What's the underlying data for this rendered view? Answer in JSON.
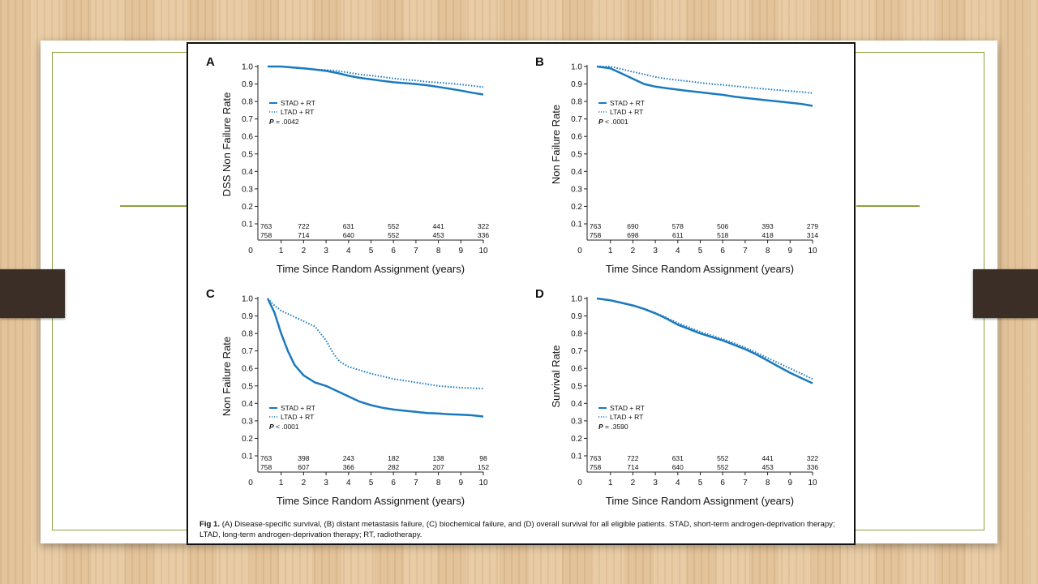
{
  "colors": {
    "series": "#1a7abf",
    "slide_frame": "#8aa33c",
    "tab": "#3b2e26"
  },
  "caption": {
    "label": "Fig 1.",
    "text": "(A) Disease-specific survival, (B) distant metastasis failure, (C) biochemical failure, and (D) overall survival for all eligible patients. STAD, short-term androgen-deprivation therapy; LTAD, long-term androgen-deprivation therapy; RT, radiotherapy."
  },
  "chart_data": [
    {
      "type": "line",
      "panel": "A",
      "xlabel": "Time Since Random Assignment (years)",
      "ylabel": "DSS Non Failure Rate",
      "xlim": [
        0,
        10
      ],
      "ylim": [
        0,
        1
      ],
      "x_ticks": [
        "0",
        "1",
        "2",
        "3",
        "4",
        "5",
        "6",
        "7",
        "8",
        "9",
        "10"
      ],
      "y_ticks": [
        "0.1",
        "0.2",
        "0.3",
        "0.4",
        "0.5",
        "0.6",
        "0.7",
        "0.8",
        "0.9",
        "1.0"
      ],
      "legend": {
        "placement": "upper-left",
        "entries": [
          "STAD + RT",
          "LTAD + RT"
        ],
        "p_label": "P",
        "p_value": "= .0042"
      },
      "series": [
        {
          "name": "STAD + RT",
          "style": "solid",
          "x": [
            0.4,
            1,
            1.5,
            2,
            2.5,
            3,
            3.5,
            4,
            4.5,
            5,
            5.5,
            6,
            6.5,
            7,
            7.5,
            8,
            8.5,
            9,
            9.5,
            10
          ],
          "y": [
            1.0,
            1.0,
            0.995,
            0.99,
            0.983,
            0.975,
            0.963,
            0.947,
            0.935,
            0.927,
            0.918,
            0.91,
            0.905,
            0.9,
            0.893,
            0.883,
            0.873,
            0.862,
            0.85,
            0.84
          ]
        },
        {
          "name": "LTAD + RT",
          "style": "dotted",
          "x": [
            0.4,
            1,
            1.5,
            2,
            2.5,
            3,
            3.5,
            4,
            4.5,
            5,
            5.5,
            6,
            6.5,
            7,
            7.5,
            8,
            8.5,
            9,
            9.5,
            10
          ],
          "y": [
            1.0,
            1.0,
            0.993,
            0.988,
            0.983,
            0.98,
            0.975,
            0.965,
            0.955,
            0.948,
            0.94,
            0.932,
            0.925,
            0.92,
            0.913,
            0.908,
            0.903,
            0.897,
            0.89,
            0.882
          ]
        }
      ],
      "at_risk": {
        "x": [
          0.4,
          2,
          4,
          6,
          8,
          10
        ],
        "rows": [
          [
            "763",
            "722",
            "631",
            "552",
            "441",
            "322"
          ],
          [
            "758",
            "714",
            "640",
            "552",
            "453",
            "336"
          ]
        ]
      }
    },
    {
      "type": "line",
      "panel": "B",
      "xlabel": "Time Since Random Assignment (years)",
      "ylabel": "Non Failure Rate",
      "xlim": [
        0,
        10
      ],
      "ylim": [
        0,
        1
      ],
      "x_ticks": [
        "0",
        "1",
        "2",
        "3",
        "4",
        "5",
        "6",
        "7",
        "8",
        "9",
        "10"
      ],
      "y_ticks": [
        "0.1",
        "0.2",
        "0.3",
        "0.4",
        "0.5",
        "0.6",
        "0.7",
        "0.8",
        "0.9",
        "1.0"
      ],
      "legend": {
        "placement": "upper-left",
        "entries": [
          "STAD + RT",
          "LTAD + RT"
        ],
        "p_label": "P",
        "p_value": "< .0001"
      },
      "series": [
        {
          "name": "STAD + RT",
          "style": "solid",
          "x": [
            0.4,
            1,
            1.5,
            2,
            2.5,
            3,
            3.5,
            4,
            4.5,
            5,
            5.5,
            6,
            6.5,
            7,
            7.5,
            8,
            8.5,
            9,
            9.5,
            10
          ],
          "y": [
            1.0,
            0.99,
            0.96,
            0.93,
            0.9,
            0.885,
            0.876,
            0.868,
            0.86,
            0.853,
            0.845,
            0.838,
            0.828,
            0.82,
            0.813,
            0.806,
            0.8,
            0.793,
            0.786,
            0.775
          ]
        },
        {
          "name": "LTAD + RT",
          "style": "dotted",
          "x": [
            0.4,
            1,
            1.5,
            2,
            2.5,
            3,
            3.5,
            4,
            4.5,
            5,
            5.5,
            6,
            6.5,
            7,
            7.5,
            8,
            8.5,
            9,
            9.5,
            10
          ],
          "y": [
            1.0,
            1.0,
            0.985,
            0.97,
            0.955,
            0.94,
            0.93,
            0.922,
            0.915,
            0.907,
            0.9,
            0.895,
            0.888,
            0.882,
            0.876,
            0.87,
            0.865,
            0.86,
            0.855,
            0.848
          ]
        }
      ],
      "at_risk": {
        "x": [
          0.4,
          2,
          4,
          6,
          8,
          10
        ],
        "rows": [
          [
            "763",
            "690",
            "578",
            "506",
            "393",
            "279"
          ],
          [
            "758",
            "698",
            "611",
            "518",
            "418",
            "314"
          ]
        ]
      }
    },
    {
      "type": "line",
      "panel": "C",
      "xlabel": "Time Since Random Assignment (years)",
      "ylabel": "Non Failure Rate",
      "xlim": [
        0,
        10
      ],
      "ylim": [
        0,
        1
      ],
      "x_ticks": [
        "0",
        "1",
        "2",
        "3",
        "4",
        "5",
        "6",
        "7",
        "8",
        "9",
        "10"
      ],
      "y_ticks": [
        "0.1",
        "0.2",
        "0.3",
        "0.4",
        "0.5",
        "0.6",
        "0.7",
        "0.8",
        "0.9",
        "1.0"
      ],
      "legend": {
        "placement": "lower-left",
        "entries": [
          "STAD + RT",
          "LTAD + RT"
        ],
        "p_label": "P",
        "p_value": "< .0001"
      },
      "series": [
        {
          "name": "STAD + RT",
          "style": "solid",
          "x": [
            0.4,
            0.7,
            1,
            1.3,
            1.6,
            2,
            2.5,
            3,
            3.5,
            4,
            4.5,
            5,
            5.5,
            6,
            6.5,
            7,
            7.5,
            8,
            8.5,
            9,
            9.5,
            10
          ],
          "y": [
            1.0,
            0.92,
            0.8,
            0.7,
            0.62,
            0.56,
            0.52,
            0.5,
            0.47,
            0.44,
            0.41,
            0.39,
            0.375,
            0.365,
            0.358,
            0.352,
            0.345,
            0.342,
            0.338,
            0.335,
            0.332,
            0.325
          ]
        },
        {
          "name": "LTAD + RT",
          "style": "dotted",
          "x": [
            0.4,
            0.7,
            1,
            1.5,
            2,
            2.5,
            3,
            3.3,
            3.6,
            4,
            4.5,
            5,
            5.5,
            6,
            6.5,
            7,
            7.5,
            8,
            8.5,
            9,
            9.5,
            10
          ],
          "y": [
            1.0,
            0.96,
            0.93,
            0.9,
            0.87,
            0.84,
            0.76,
            0.69,
            0.64,
            0.61,
            0.59,
            0.57,
            0.555,
            0.54,
            0.53,
            0.52,
            0.51,
            0.5,
            0.495,
            0.49,
            0.487,
            0.485
          ]
        }
      ],
      "at_risk": {
        "x": [
          0.4,
          2,
          4,
          6,
          8,
          10
        ],
        "rows": [
          [
            "763",
            "398",
            "243",
            "182",
            "138",
            "98"
          ],
          [
            "758",
            "607",
            "366",
            "282",
            "207",
            "152"
          ]
        ]
      }
    },
    {
      "type": "line",
      "panel": "D",
      "xlabel": "Time Since Random Assignment (years)",
      "ylabel": "Survival Rate",
      "xlim": [
        0,
        10
      ],
      "ylim": [
        0,
        1
      ],
      "x_ticks": [
        "0",
        "1",
        "2",
        "3",
        "4",
        "5",
        "6",
        "7",
        "8",
        "9",
        "10"
      ],
      "y_ticks": [
        "0.1",
        "0.2",
        "0.3",
        "0.4",
        "0.5",
        "0.6",
        "0.7",
        "0.8",
        "0.9",
        "1.0"
      ],
      "legend": {
        "placement": "lower-left",
        "entries": [
          "STAD + RT",
          "LTAD + RT"
        ],
        "p_label": "P",
        "p_value": "= .3590"
      },
      "series": [
        {
          "name": "STAD + RT",
          "style": "solid",
          "x": [
            0.4,
            1,
            1.5,
            2,
            2.5,
            3,
            3.5,
            4,
            4.5,
            5,
            5.5,
            6,
            6.5,
            7,
            7.5,
            8,
            8.5,
            9,
            9.5,
            10
          ],
          "y": [
            1.0,
            0.99,
            0.975,
            0.96,
            0.94,
            0.915,
            0.885,
            0.85,
            0.825,
            0.8,
            0.78,
            0.76,
            0.735,
            0.71,
            0.68,
            0.645,
            0.61,
            0.575,
            0.545,
            0.515
          ]
        },
        {
          "name": "LTAD + RT",
          "style": "dotted",
          "x": [
            0.4,
            1,
            1.5,
            2,
            2.5,
            3,
            3.5,
            4,
            4.5,
            5,
            5.5,
            6,
            6.5,
            7,
            7.5,
            8,
            8.5,
            9,
            9.5,
            10
          ],
          "y": [
            1.0,
            0.99,
            0.976,
            0.962,
            0.942,
            0.918,
            0.89,
            0.86,
            0.835,
            0.81,
            0.788,
            0.768,
            0.745,
            0.72,
            0.69,
            0.66,
            0.63,
            0.6,
            0.57,
            0.54
          ]
        }
      ],
      "at_risk": {
        "x": [
          0.4,
          2,
          4,
          6,
          8,
          10
        ],
        "rows": [
          [
            "763",
            "722",
            "631",
            "552",
            "441",
            "322"
          ],
          [
            "758",
            "714",
            "640",
            "552",
            "453",
            "336"
          ]
        ]
      }
    }
  ]
}
